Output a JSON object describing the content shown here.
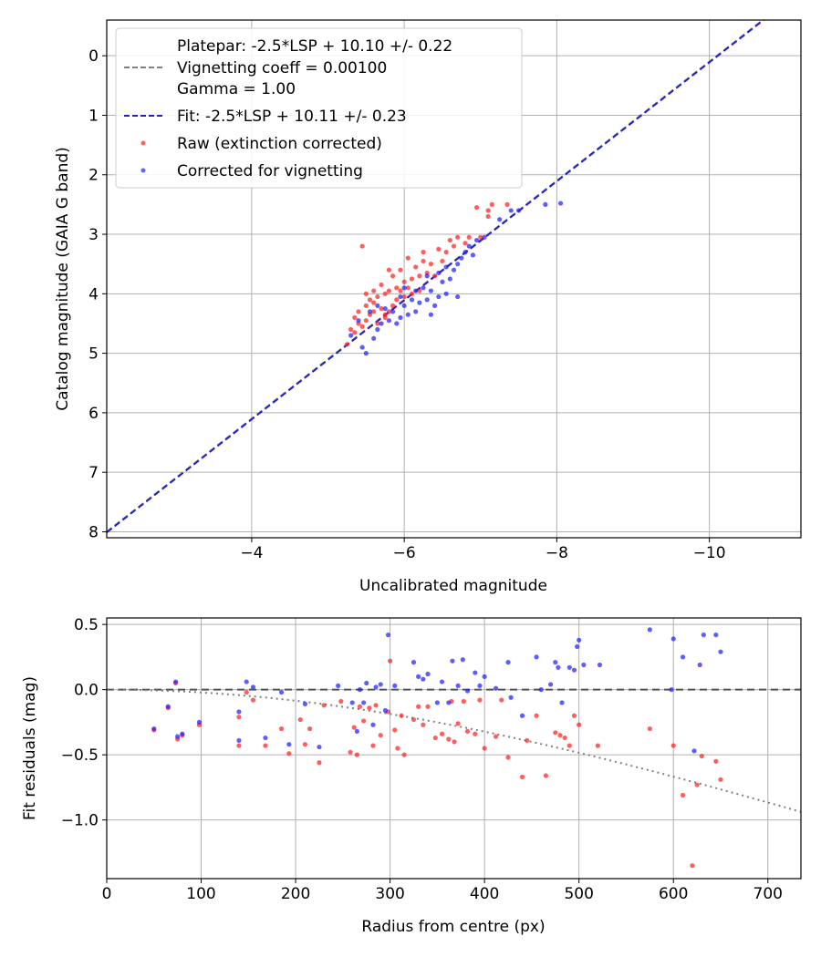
{
  "chart_data": [
    {
      "type": "scatter",
      "xlabel": "Uncalibrated magnitude",
      "ylabel": "Catalog magnitude (GAIA G band)",
      "xlim": [
        -2.1,
        -11.2
      ],
      "ylim": [
        8.1,
        -0.6
      ],
      "xticks": [
        -4,
        -6,
        -8,
        -10
      ],
      "xtick_labels": [
        "−4",
        "−6",
        "−8",
        "−10"
      ],
      "yticks": [
        0,
        1,
        2,
        3,
        4,
        5,
        6,
        7,
        8
      ],
      "ytick_labels": [
        "0",
        "1",
        "2",
        "3",
        "4",
        "5",
        "6",
        "7",
        "8"
      ],
      "grid": true,
      "legend_position": "top-left",
      "legend": [
        {
          "label": "Platepar: -2.5*LSP + 10.10 +/- 0.22",
          "style": "none"
        },
        {
          "label": "Vignetting coeff = 0.00100",
          "style": "dashed-gray"
        },
        {
          "label": "Gamma = 1.00",
          "style": "none"
        },
        {
          "label": "Fit: -2.5*LSP + 10.11 +/- 0.23",
          "style": "dashed-blue"
        },
        {
          "label": "Raw (extinction corrected)",
          "style": "dot-red"
        },
        {
          "label": "Corrected for vignetting",
          "style": "dot-blue"
        }
      ],
      "lines": [
        {
          "name": "Platepar",
          "intercept": 10.1,
          "slope": 1.0,
          "color": "#808080"
        },
        {
          "name": "Fit",
          "intercept": 10.11,
          "slope": 1.0,
          "color": "#2222cc"
        }
      ],
      "series": [
        {
          "name": "Raw (extinction corrected)",
          "color": "#ff2020",
          "points": [
            [
              -5.25,
              4.85
            ],
            [
              -5.3,
              4.6
            ],
            [
              -5.35,
              4.4
            ],
            [
              -5.4,
              4.5
            ],
            [
              -5.4,
              4.3
            ],
            [
              -5.45,
              4.55
            ],
            [
              -5.5,
              4.2
            ],
            [
              -5.5,
              4.45
            ],
            [
              -5.55,
              4.1
            ],
            [
              -5.55,
              4.35
            ],
            [
              -5.6,
              3.95
            ],
            [
              -5.6,
              4.3
            ],
            [
              -5.65,
              4.5
            ],
            [
              -5.65,
              4.05
            ],
            [
              -5.7,
              3.85
            ],
            [
              -5.7,
              4.25
            ],
            [
              -5.75,
              4.4
            ],
            [
              -5.75,
              4.0
            ],
            [
              -5.8,
              3.95
            ],
            [
              -5.8,
              4.3
            ],
            [
              -5.85,
              4.2
            ],
            [
              -5.85,
              3.7
            ],
            [
              -5.9,
              3.9
            ],
            [
              -5.9,
              4.1
            ],
            [
              -5.95,
              3.6
            ],
            [
              -5.95,
              3.95
            ],
            [
              -6.0,
              3.8
            ],
            [
              -6.0,
              4.05
            ],
            [
              -6.05,
              3.4
            ],
            [
              -6.05,
              3.9
            ],
            [
              -6.1,
              3.75
            ],
            [
              -6.15,
              3.55
            ],
            [
              -6.2,
              3.7
            ],
            [
              -6.2,
              3.95
            ],
            [
              -6.25,
              3.3
            ],
            [
              -6.3,
              3.65
            ],
            [
              -6.35,
              3.5
            ],
            [
              -6.4,
              3.7
            ],
            [
              -6.45,
              3.25
            ],
            [
              -6.5,
              3.45
            ],
            [
              -6.55,
              3.3
            ],
            [
              -6.6,
              3.1
            ],
            [
              -6.65,
              3.2
            ],
            [
              -6.7,
              3.05
            ],
            [
              -6.8,
              3.15
            ],
            [
              -6.85,
              3.05
            ],
            [
              -6.95,
              2.55
            ],
            [
              -7.0,
              3.05
            ],
            [
              -7.1,
              2.7
            ],
            [
              -7.15,
              2.5
            ],
            [
              -7.35,
              2.5
            ],
            [
              -5.45,
              3.2
            ],
            [
              -5.6,
              4.15
            ],
            [
              -5.75,
              4.35
            ],
            [
              -6.1,
              4.0
            ],
            [
              -5.35,
              4.65
            ],
            [
              -7.1,
              2.6
            ],
            [
              -5.5,
              4.0
            ],
            [
              -6.25,
              3.45
            ],
            [
              -5.8,
              3.6
            ]
          ]
        },
        {
          "name": "Corrected for vignetting",
          "color": "#2020ff",
          "points": [
            [
              -5.3,
              4.7
            ],
            [
              -5.45,
              4.9
            ],
            [
              -5.5,
              5.0
            ],
            [
              -5.6,
              4.75
            ],
            [
              -5.65,
              4.6
            ],
            [
              -5.7,
              4.5
            ],
            [
              -5.8,
              4.45
            ],
            [
              -5.85,
              4.3
            ],
            [
              -5.9,
              4.5
            ],
            [
              -5.95,
              4.4
            ],
            [
              -6.0,
              4.2
            ],
            [
              -6.05,
              4.35
            ],
            [
              -6.1,
              4.1
            ],
            [
              -6.15,
              4.3
            ],
            [
              -6.2,
              4.15
            ],
            [
              -6.25,
              3.9
            ],
            [
              -6.3,
              4.1
            ],
            [
              -6.35,
              3.95
            ],
            [
              -6.4,
              4.2
            ],
            [
              -6.45,
              4.05
            ],
            [
              -6.5,
              3.8
            ],
            [
              -6.55,
              4.0
            ],
            [
              -6.6,
              3.75
            ],
            [
              -6.65,
              3.6
            ],
            [
              -6.7,
              3.5
            ],
            [
              -6.75,
              3.4
            ],
            [
              -6.8,
              3.3
            ],
            [
              -6.9,
              3.35
            ],
            [
              -6.95,
              3.1
            ],
            [
              -7.05,
              3.05
            ],
            [
              -7.25,
              2.75
            ],
            [
              -7.4,
              2.6
            ],
            [
              -7.85,
              2.5
            ],
            [
              -8.05,
              2.48
            ],
            [
              -5.55,
              4.3
            ],
            [
              -5.75,
              4.25
            ],
            [
              -6.0,
              3.9
            ],
            [
              -6.3,
              3.7
            ],
            [
              -6.45,
              3.65
            ],
            [
              -6.7,
              4.05
            ],
            [
              -6.35,
              4.35
            ],
            [
              -5.65,
              4.2
            ],
            [
              -5.95,
              4.05
            ],
            [
              -7.5,
              2.6
            ],
            [
              -6.85,
              3.2
            ],
            [
              -6.55,
              3.55
            ],
            [
              -6.15,
              3.95
            ],
            [
              -5.4,
              4.45
            ]
          ]
        }
      ]
    },
    {
      "type": "scatter",
      "xlabel": "Radius from centre (px)",
      "ylabel": "Fit residuals (mag)",
      "xlim": [
        0,
        735
      ],
      "ylim": [
        -1.45,
        0.55
      ],
      "xticks": [
        0,
        100,
        200,
        300,
        400,
        500,
        600,
        700
      ],
      "xtick_labels": [
        "0",
        "100",
        "200",
        "300",
        "400",
        "500",
        "600",
        "700"
      ],
      "yticks": [
        0.5,
        0.0,
        -0.5,
        -1.0
      ],
      "ytick_labels": [
        "0.5",
        "0.0",
        "−0.5",
        "−1.0"
      ],
      "grid": true,
      "reference_lines": [
        {
          "name": "zero",
          "style": "dashed",
          "value": 0.0
        },
        {
          "name": "vignetting",
          "style": "dotted",
          "coefficient": 0.001
        }
      ],
      "series": [
        {
          "name": "Raw (extinction corrected)",
          "color": "#ff2020",
          "points": [
            [
              50,
              -0.31
            ],
            [
              65,
              -0.14
            ],
            [
              73,
              0.05
            ],
            [
              75,
              -0.38
            ],
            [
              80,
              -0.35
            ],
            [
              98,
              -0.27
            ],
            [
              140,
              -0.21
            ],
            [
              140,
              -0.43
            ],
            [
              148,
              -0.02
            ],
            [
              155,
              -0.08
            ],
            [
              168,
              -0.43
            ],
            [
              185,
              -0.3
            ],
            [
              193,
              -0.49
            ],
            [
              205,
              -0.23
            ],
            [
              210,
              -0.42
            ],
            [
              215,
              -0.3
            ],
            [
              225,
              -0.56
            ],
            [
              230,
              -0.12
            ],
            [
              248,
              -0.09
            ],
            [
              258,
              -0.48
            ],
            [
              262,
              -0.29
            ],
            [
              265,
              -0.5
            ],
            [
              268,
              -0.13
            ],
            [
              272,
              -0.24
            ],
            [
              278,
              -0.14
            ],
            [
              282,
              -0.43
            ],
            [
              285,
              -0.12
            ],
            [
              290,
              -0.35
            ],
            [
              298,
              -0.17
            ],
            [
              300,
              0.22
            ],
            [
              305,
              -0.31
            ],
            [
              308,
              -0.45
            ],
            [
              312,
              -0.2
            ],
            [
              315,
              -0.5
            ],
            [
              325,
              -0.23
            ],
            [
              330,
              -0.13
            ],
            [
              335,
              -0.27
            ],
            [
              340,
              -0.13
            ],
            [
              348,
              -0.37
            ],
            [
              355,
              -0.34
            ],
            [
              362,
              -0.38
            ],
            [
              365,
              -0.09
            ],
            [
              368,
              -0.4
            ],
            [
              372,
              -0.26
            ],
            [
              378,
              -0.09
            ],
            [
              382,
              -0.32
            ],
            [
              390,
              -0.34
            ],
            [
              395,
              -0.08
            ],
            [
              400,
              -0.45
            ],
            [
              412,
              -0.36
            ],
            [
              418,
              -0.08
            ],
            [
              425,
              -0.52
            ],
            [
              440,
              -0.67
            ],
            [
              445,
              -0.39
            ],
            [
              455,
              -0.2
            ],
            [
              465,
              -0.66
            ],
            [
              475,
              -0.33
            ],
            [
              480,
              -0.35
            ],
            [
              485,
              -0.37
            ],
            [
              490,
              -0.43
            ],
            [
              495,
              -0.2
            ],
            [
              500,
              -0.27
            ],
            [
              520,
              -0.43
            ],
            [
              575,
              -0.3
            ],
            [
              600,
              -0.43
            ],
            [
              610,
              -0.81
            ],
            [
              620,
              -1.35
            ],
            [
              625,
              -0.73
            ],
            [
              630,
              -0.51
            ],
            [
              645,
              -0.55
            ],
            [
              650,
              -0.69
            ]
          ]
        },
        {
          "name": "Corrected for vignetting",
          "color": "#2020ff",
          "points": [
            [
              50,
              -0.3
            ],
            [
              65,
              -0.13
            ],
            [
              73,
              0.06
            ],
            [
              75,
              -0.36
            ],
            [
              80,
              -0.34
            ],
            [
              98,
              -0.25
            ],
            [
              140,
              -0.17
            ],
            [
              140,
              -0.39
            ],
            [
              148,
              0.06
            ],
            [
              155,
              0.02
            ],
            [
              168,
              -0.37
            ],
            [
              185,
              -0.02
            ],
            [
              193,
              -0.42
            ],
            [
              210,
              -0.11
            ],
            [
              225,
              -0.44
            ],
            [
              245,
              0.03
            ],
            [
              260,
              -0.1
            ],
            [
              265,
              -0.32
            ],
            [
              268,
              0.0
            ],
            [
              272,
              -0.1
            ],
            [
              275,
              0.05
            ],
            [
              282,
              -0.27
            ],
            [
              285,
              0.02
            ],
            [
              290,
              0.04
            ],
            [
              295,
              -0.16
            ],
            [
              298,
              0.42
            ],
            [
              305,
              0.03
            ],
            [
              325,
              0.21
            ],
            [
              330,
              0.1
            ],
            [
              335,
              0.08
            ],
            [
              340,
              0.12
            ],
            [
              350,
              -0.1
            ],
            [
              355,
              0.06
            ],
            [
              362,
              -0.1
            ],
            [
              366,
              0.22
            ],
            [
              372,
              0.03
            ],
            [
              377,
              0.23
            ],
            [
              382,
              -0.01
            ],
            [
              390,
              0.13
            ],
            [
              395,
              0.03
            ],
            [
              400,
              0.1
            ],
            [
              412,
              0.01
            ],
            [
              425,
              0.21
            ],
            [
              428,
              -0.06
            ],
            [
              440,
              -0.2
            ],
            [
              455,
              0.25
            ],
            [
              460,
              0.0
            ],
            [
              470,
              0.04
            ],
            [
              475,
              0.21
            ],
            [
              478,
              0.17
            ],
            [
              482,
              -0.1
            ],
            [
              490,
              0.17
            ],
            [
              495,
              0.15
            ],
            [
              498,
              0.33
            ],
            [
              500,
              0.38
            ],
            [
              505,
              0.19
            ],
            [
              522,
              0.19
            ],
            [
              575,
              0.46
            ],
            [
              598,
              0.0
            ],
            [
              600,
              0.39
            ],
            [
              610,
              0.25
            ],
            [
              622,
              -0.47
            ],
            [
              628,
              0.19
            ],
            [
              632,
              0.42
            ],
            [
              645,
              0.42
            ],
            [
              650,
              0.29
            ]
          ]
        }
      ]
    }
  ]
}
